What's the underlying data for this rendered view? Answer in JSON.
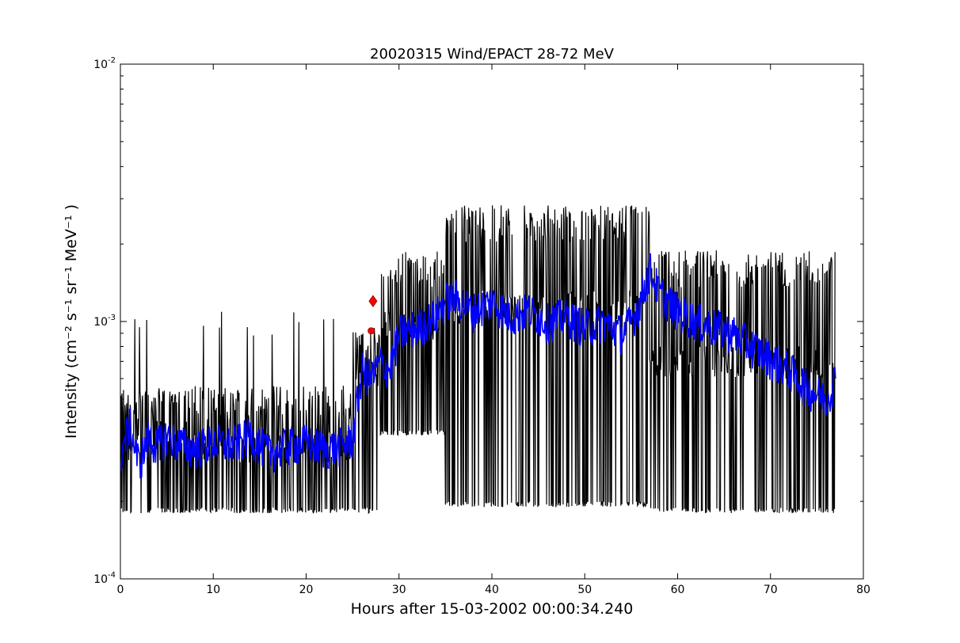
{
  "chart_data": {
    "type": "line",
    "title": "20020315 Wind/EPACT 28-72 MeV",
    "xlabel": "Hours after 15-03-2002 00:00:34.240",
    "ylabel": "Intensity (cm⁻² s⁻¹ sr⁻¹ MeV⁻¹ )",
    "xlim": [
      0,
      80
    ],
    "ylim": [
      0.0001,
      0.01
    ],
    "yscale": "log",
    "grid": false,
    "x_ticks": [
      0,
      10,
      20,
      30,
      40,
      50,
      60,
      70,
      80
    ],
    "x_tick_labels": [
      "0",
      "10",
      "20",
      "30",
      "40",
      "50",
      "60",
      "70",
      "80"
    ],
    "y_ticks": [
      0.0001,
      0.001,
      0.01
    ],
    "y_tick_labels": [
      {
        "base": "10",
        "exp": "-4"
      },
      {
        "base": "10",
        "exp": "-3"
      },
      {
        "base": "10",
        "exp": "-2"
      }
    ],
    "series": [
      {
        "color": "#000000",
        "style": "raw-noisy",
        "segments": [
          {
            "x0": 0,
            "x1": 25,
            "baseline": 0.00033,
            "low": 0.00018,
            "high": 0.00054,
            "spikes_max": 0.0011
          },
          {
            "x0": 25,
            "x1": 28,
            "baseline": 0.0006,
            "low": 0.00018,
            "high": 0.0009
          },
          {
            "x0": 28,
            "x1": 35,
            "baseline": 0.00095,
            "low": 0.00036,
            "high": 0.0018
          },
          {
            "x0": 35,
            "x1": 57,
            "baseline": 0.00115,
            "low": 0.00019,
            "high": 0.0027
          },
          {
            "x0": 57,
            "x1": 77,
            "baseline": 0.0007,
            "low": 0.00018,
            "high": 0.0018
          }
        ]
      },
      {
        "color": "#0000ff",
        "style": "smoothed",
        "x": [
          0,
          1,
          2,
          3,
          4,
          5,
          6,
          8,
          10,
          12,
          14,
          16,
          18,
          20,
          22,
          24,
          25,
          26,
          27,
          28,
          29,
          30,
          32,
          34,
          35,
          36,
          38,
          40,
          42,
          44,
          46,
          48,
          50,
          52,
          54,
          55,
          56,
          57,
          58,
          60,
          62,
          64,
          66,
          68,
          70,
          72,
          74,
          76,
          77
        ],
        "values": [
          0.0003,
          0.0004,
          0.00028,
          0.00035,
          0.00033,
          0.00036,
          0.00034,
          0.00032,
          0.00034,
          0.00033,
          0.00036,
          0.00031,
          0.00033,
          0.00034,
          0.00032,
          0.00033,
          0.00035,
          0.00065,
          0.0006,
          0.0007,
          0.00065,
          0.0009,
          0.00095,
          0.00105,
          0.0012,
          0.00125,
          0.0011,
          0.0012,
          0.00105,
          0.0011,
          0.001,
          0.00105,
          0.00095,
          0.001,
          0.0009,
          0.001,
          0.0012,
          0.0016,
          0.0013,
          0.0011,
          0.001,
          0.00095,
          0.0009,
          0.0008,
          0.00072,
          0.00065,
          0.00055,
          0.0005,
          0.0006
        ]
      }
    ],
    "markers": [
      {
        "x": 27.2,
        "y": 0.0012,
        "color": "#ff0000",
        "shape": "diamond"
      },
      {
        "x": 27.0,
        "y": 0.00092,
        "color": "#ff0000",
        "shape": "circle"
      }
    ]
  }
}
